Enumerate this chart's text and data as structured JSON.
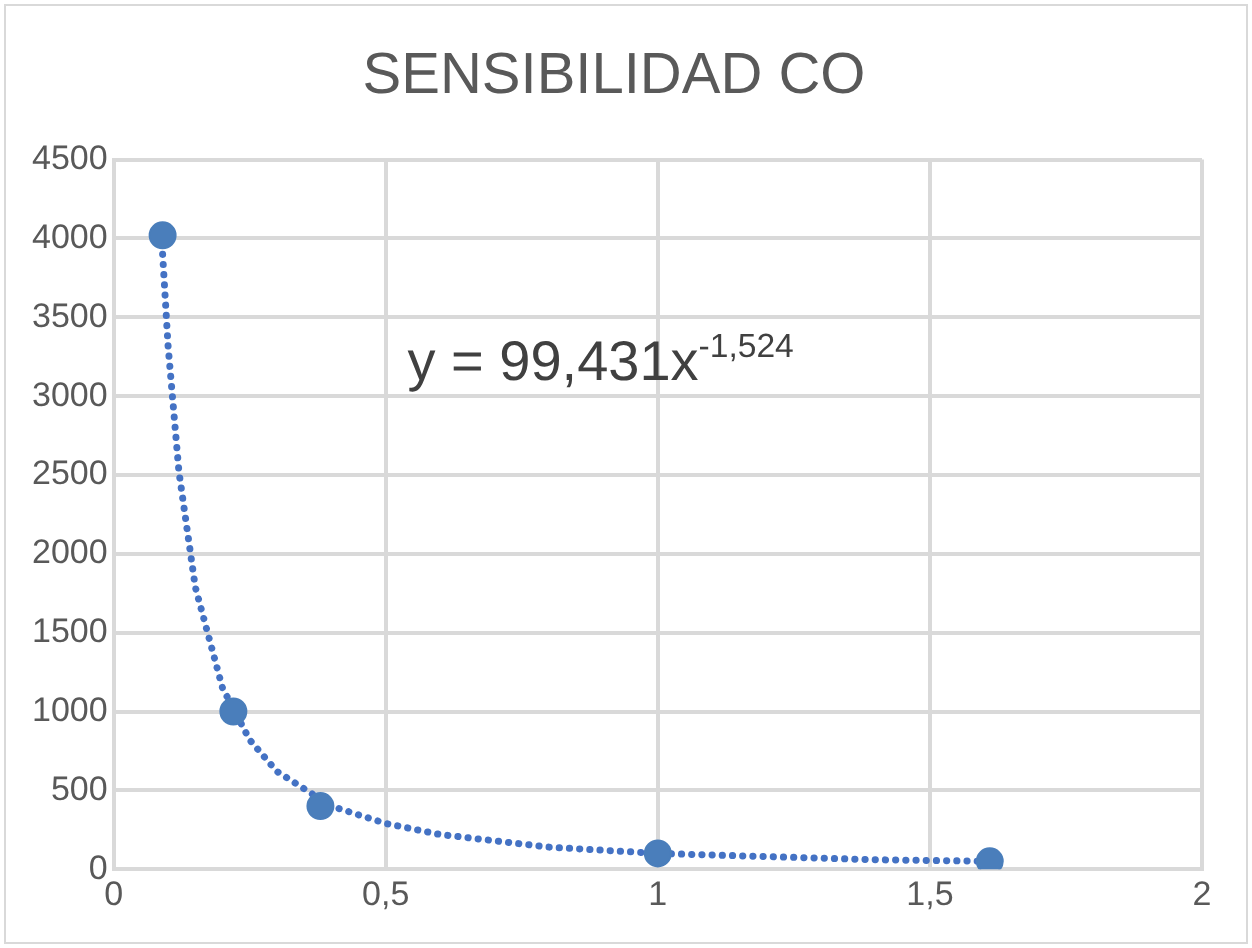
{
  "chart_data": {
    "type": "scatter",
    "title": "SENSIBILIDAD CO",
    "series": [
      {
        "color": "#4a7ebb",
        "x": [
          0.09,
          0.22,
          0.38,
          1,
          1.61
        ],
        "values": [
          4020,
          1000,
          400,
          100,
          50
        ]
      },
      {
        "type": "line",
        "color": "#4472c4",
        "line_style": "dotted",
        "marker": "none",
        "x": [
          0.09,
          0.1,
          0.12,
          0.15,
          0.2,
          0.25,
          0.3,
          0.4,
          0.5,
          0.6,
          0.8,
          1,
          1.2,
          1.4,
          1.61
        ],
        "values": [
          3900,
          3320,
          2520,
          1790,
          1150,
          820,
          620,
          400,
          290,
          220,
          140,
          100,
          80,
          60,
          50
        ]
      }
    ],
    "xlim": [
      0,
      2
    ],
    "xticks": [
      0,
      {
        "value": 0.5,
        "label": "0,5"
      },
      1,
      {
        "value": 1.5,
        "label": "1,5"
      },
      2
    ],
    "ylim": [
      0,
      4500
    ],
    "yticks": [
      0,
      500,
      1000,
      1500,
      2000,
      2500,
      3000,
      3500,
      4000,
      4500
    ],
    "grid": true,
    "legend": false,
    "marker": "circle",
    "annotations": [
      "y = 99,431x$^{-1,524}$"
    ]
  }
}
